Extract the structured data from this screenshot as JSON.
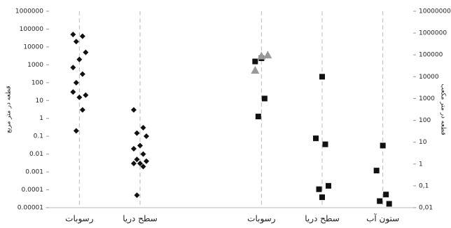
{
  "chart_data": {
    "type": "strip",
    "categories": [
      "رسوبات",
      "سطح دریا",
      null,
      "رسوبات",
      "سطح دریا",
      "ستون آب"
    ],
    "ylabel": "قطعه در متر مربع",
    "y2label": "قطعه در متر مکعب",
    "log_scale": true,
    "ylim": [
      1e-05,
      1000000
    ],
    "yticks": [
      1000000,
      100000,
      10000,
      1000,
      100,
      10,
      1,
      0.1,
      0.01,
      0.001,
      0.0001,
      1e-05
    ],
    "y2lim": [
      0.01,
      10000000
    ],
    "y2ticks": [
      10000000,
      1000000,
      100000,
      10000,
      1000,
      100,
      10,
      1,
      {
        "value": 0.1,
        "label": "0,1"
      },
      {
        "value": 0.01,
        "label": "0,01"
      }
    ],
    "series": [
      {
        "marker": "diamond",
        "color": "#111111",
        "axis": "y",
        "groups": [
          [
            50000,
            40000,
            20000,
            5000,
            2000,
            700,
            300,
            100,
            20,
            15,
            30,
            3,
            0.2
          ],
          [
            3,
            0.3,
            0.15,
            0.1,
            0.03,
            0.02,
            0.01,
            0.005,
            0.004,
            0.003,
            0.003,
            0.002,
            5e-05
          ],
          [],
          [],
          [],
          []
        ]
      },
      {
        "marker": "square",
        "color": "#111111",
        "axis": "y2",
        "groups": [
          [],
          [],
          [],
          [
            70000,
            50000,
            1000,
            150
          ],
          [
            10000,
            15,
            8,
            0.07,
            0.1,
            0.03
          ],
          [
            7,
            0.5,
            0.04,
            0.02,
            0.015
          ]
        ]
      },
      {
        "marker": "triangle",
        "color": "#999999",
        "axis": "y2",
        "groups": [
          [],
          [],
          [],
          [
            100000,
            90000,
            20000
          ],
          [],
          []
        ]
      }
    ]
  }
}
